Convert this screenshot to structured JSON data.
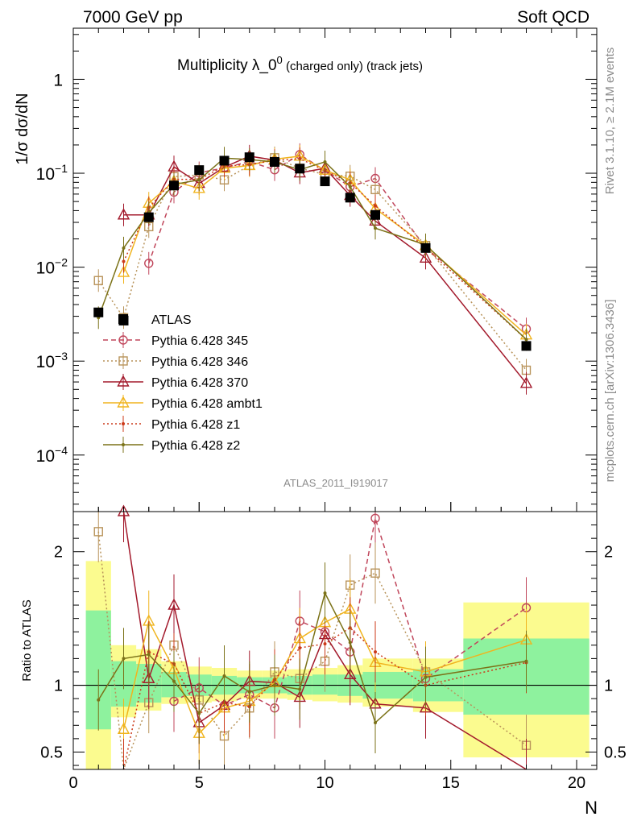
{
  "header": {
    "left": "7000 GeV pp",
    "right": "Soft QCD"
  },
  "title": {
    "main": "Multiplicity λ_0",
    "sup": "0",
    "sub": " (charged only) (track jets)"
  },
  "ylabel_top": "1/σ dσ/dN",
  "ylabel_bottom": "Ratio to ATLAS",
  "xlabel": "N",
  "side_text": {
    "rivet": "Rivet 3.1.10, ≥ 2.1M events",
    "site": "mcplots.cern.ch [arXiv:1306.3436]"
  },
  "analysis_id": "ATLAS_2011_I919017",
  "chart_data": [
    {
      "type": "scatter",
      "yscale": "log",
      "xlim": [
        0,
        20.8
      ],
      "ylim": [
        2.5e-05,
        3.5
      ],
      "x_ticks": [
        "0",
        "5",
        "10",
        "15",
        "20"
      ],
      "y_ticks": [
        {
          "base": "10",
          "exp": "−4",
          "value": 0.0001
        },
        {
          "base": "10",
          "exp": "−3",
          "value": 0.001
        },
        {
          "base": "10",
          "exp": "−2",
          "value": 0.01
        },
        {
          "base": "10",
          "exp": "−1",
          "value": 0.1
        },
        {
          "base": "1",
          "exp": "",
          "value": 1
        }
      ],
      "legend_position": "left, lower-middle",
      "series": [
        {
          "name": "ATLAS",
          "color": "#000000",
          "marker": "square-filled",
          "style": "data",
          "x": [
            1,
            2,
            3,
            4,
            5,
            6,
            7,
            8,
            9,
            10,
            11,
            12,
            14,
            18
          ],
          "y": [
            0.0033,
            0.0027,
            0.034,
            0.074,
            0.108,
            0.136,
            0.148,
            0.132,
            0.112,
            0.082,
            0.055,
            0.036,
            0.016,
            0.00145
          ]
        },
        {
          "name": "Pythia 6.428 345",
          "color": "#c0465b",
          "marker": "circle-open",
          "style": "dashed",
          "x": [
            3,
            4,
            5,
            6,
            7,
            8,
            9,
            10,
            11,
            12,
            14,
            18
          ],
          "y": [
            0.011,
            0.063,
            0.101,
            0.114,
            0.133,
            0.109,
            0.158,
            0.107,
            0.072,
            0.088,
            0.016,
            0.0022
          ]
        },
        {
          "name": "Pythia 6.428 346",
          "color": "#b8935a",
          "marker": "square-open",
          "style": "dotted",
          "x": [
            1,
            2,
            3,
            4,
            5,
            6,
            7,
            8,
            9,
            10,
            11,
            12,
            14,
            18
          ],
          "y": [
            0.0072,
            0.0029,
            0.027,
            0.092,
            0.096,
            0.085,
            0.121,
            0.146,
            0.113,
            0.097,
            0.093,
            0.067,
            0.017,
            0.0008
          ]
        },
        {
          "name": "Pythia 6.428 370",
          "color": "#a31a2c",
          "marker": "triangle-open",
          "style": "solid",
          "x": [
            2,
            3,
            4,
            5,
            6,
            7,
            8,
            9,
            10,
            11,
            12,
            14,
            18
          ],
          "y": [
            0.036,
            0.036,
            0.117,
            0.078,
            0.116,
            0.152,
            0.138,
            0.101,
            0.113,
            0.058,
            0.031,
            0.0125,
            0.00058
          ]
        },
        {
          "name": "Pythia 6.428 ambt1",
          "color": "#f0b41e",
          "marker": "triangle-open",
          "style": "solid",
          "x": [
            2,
            3,
            4,
            5,
            6,
            7,
            8,
            9,
            10,
            11,
            12,
            14,
            18
          ],
          "y": [
            0.0088,
            0.048,
            0.082,
            0.069,
            0.113,
            0.121,
            0.141,
            0.152,
            0.108,
            0.085,
            0.042,
            0.017,
            0.0019
          ]
        },
        {
          "name": "Pythia 6.428 z1",
          "color": "#cc3a1a",
          "marker": "dot",
          "style": "dotted",
          "x": [
            2,
            3,
            4,
            5,
            6,
            7,
            8,
            9,
            10,
            11,
            12,
            14,
            18
          ],
          "y": [
            0.0115,
            0.043,
            0.086,
            0.086,
            0.119,
            0.124,
            0.137,
            0.143,
            0.107,
            0.079,
            0.045,
            0.016,
            0.0017
          ]
        },
        {
          "name": "Pythia 6.428 z2",
          "color": "#7b7218",
          "marker": "dot",
          "style": "solid",
          "x": [
            1,
            2,
            3,
            4,
            5,
            6,
            7,
            8,
            9,
            10,
            11,
            12,
            14,
            18
          ],
          "y": [
            0.0029,
            0.016,
            0.038,
            0.076,
            0.085,
            0.145,
            0.14,
            0.132,
            0.109,
            0.132,
            0.072,
            0.026,
            0.0173,
            0.0017
          ]
        }
      ]
    },
    {
      "type": "scatter",
      "xlim": [
        0,
        20.8
      ],
      "ylim": [
        0.37,
        2.3
      ],
      "x_ticks": [
        "0",
        "5",
        "10",
        "15",
        "20"
      ],
      "y_ticks": [
        "0.5",
        "1",
        "2"
      ],
      "ylabel": "Ratio to ATLAS",
      "xlabel": "N",
      "bands": [
        {
          "x": [
            0.5,
            1.5
          ],
          "stat_syst": [
            0.35,
            1.93
          ],
          "stat": [
            0.67,
            1.56
          ]
        },
        {
          "x": [
            1.5,
            2.5
          ],
          "stat_syst": [
            0.76,
            1.3
          ],
          "stat": [
            0.84,
            1.18
          ]
        },
        {
          "x": [
            2.5,
            3.5
          ],
          "stat_syst": [
            0.81,
            1.27
          ],
          "stat": [
            0.87,
            1.16
          ]
        },
        {
          "x": [
            3.5,
            4.5
          ],
          "stat_syst": [
            0.86,
            1.18
          ],
          "stat": [
            0.91,
            1.1
          ]
        },
        {
          "x": [
            4.5,
            5.5
          ],
          "stat_syst": [
            0.87,
            1.14
          ],
          "stat": [
            0.92,
            1.08
          ]
        },
        {
          "x": [
            5.5,
            6.5
          ],
          "stat_syst": [
            0.88,
            1.13
          ],
          "stat": [
            0.93,
            1.07
          ]
        },
        {
          "x": [
            6.5,
            7.5
          ],
          "stat_syst": [
            0.9,
            1.11
          ],
          "stat": [
            0.94,
            1.06
          ]
        },
        {
          "x": [
            7.5,
            8.5
          ],
          "stat_syst": [
            0.9,
            1.11
          ],
          "stat": [
            0.94,
            1.06
          ]
        },
        {
          "x": [
            8.5,
            9.5
          ],
          "stat_syst": [
            0.89,
            1.12
          ],
          "stat": [
            0.93,
            1.07
          ]
        },
        {
          "x": [
            9.5,
            10.5
          ],
          "stat_syst": [
            0.88,
            1.13
          ],
          "stat": [
            0.93,
            1.08
          ]
        },
        {
          "x": [
            10.5,
            11.5
          ],
          "stat_syst": [
            0.87,
            1.15
          ],
          "stat": [
            0.92,
            1.08
          ]
        },
        {
          "x": [
            11.5,
            13.5
          ],
          "stat_syst": [
            0.84,
            1.2
          ],
          "stat": [
            0.9,
            1.1
          ]
        },
        {
          "x": [
            13.5,
            15.5
          ],
          "stat_syst": [
            0.8,
            1.2
          ],
          "stat": [
            0.88,
            1.12
          ]
        },
        {
          "x": [
            15.5,
            20.5
          ],
          "stat_syst": [
            0.46,
            1.62
          ],
          "stat": [
            0.78,
            1.35
          ]
        }
      ],
      "series": [
        {
          "name": "Pythia 6.428 345",
          "color": "#c0465b",
          "marker": "circle-open",
          "style": "dashed",
          "x": [
            4,
            5,
            6,
            7,
            8,
            9,
            10,
            11,
            12,
            14,
            18
          ],
          "y": [
            0.88,
            0.98,
            0.85,
            0.93,
            0.83,
            1.48,
            1.4,
            1.25,
            2.25,
            1.05,
            1.58
          ]
        },
        {
          "name": "Pythia 6.428 346",
          "color": "#b8935a",
          "marker": "square-open",
          "style": "dotted",
          "x": [
            1,
            2,
            3,
            4,
            5,
            6,
            7,
            8,
            9,
            10,
            11,
            12,
            14,
            18
          ],
          "y": [
            2.15,
            0.3,
            0.87,
            1.3,
            0.89,
            0.62,
            0.83,
            1.1,
            1.05,
            1.18,
            1.75,
            1.84,
            1.1,
            0.55
          ]
        },
        {
          "name": "Pythia 6.428 370",
          "color": "#a31a2c",
          "marker": "triangle-open",
          "style": "solid",
          "x": [
            2,
            3,
            4,
            5,
            6,
            7,
            8,
            9,
            10,
            11,
            12,
            14,
            18
          ],
          "y": [
            2.3,
            1.05,
            1.6,
            0.72,
            0.85,
            1.03,
            1.02,
            0.91,
            1.38,
            1.08,
            0.86,
            0.83,
            0.36
          ]
        },
        {
          "name": "Pythia 6.428 ambt1",
          "color": "#f0b41e",
          "marker": "triangle-open",
          "style": "solid",
          "x": [
            2,
            3,
            4,
            5,
            6,
            7,
            8,
            9,
            10,
            11,
            12,
            14,
            18
          ],
          "y": [
            0.67,
            1.48,
            1.12,
            0.64,
            0.83,
            0.88,
            1.02,
            1.35,
            1.47,
            1.57,
            1.17,
            1.1,
            1.34
          ]
        },
        {
          "name": "Pythia 6.428 z1",
          "color": "#cc3a1a",
          "marker": "dot",
          "style": "dotted",
          "x": [
            2,
            3,
            4,
            5,
            6,
            7,
            8,
            9,
            10,
            11,
            12,
            14,
            18
          ],
          "y": [
            0.32,
            1.25,
            1.16,
            0.79,
            0.87,
            0.84,
            1.04,
            1.28,
            1.31,
            1.43,
            1.25,
            1.0,
            1.17
          ]
        },
        {
          "name": "Pythia 6.428 z2",
          "color": "#7b7218",
          "marker": "dot",
          "style": "solid",
          "x": [
            1,
            2,
            3,
            4,
            5,
            6,
            7,
            8,
            9,
            10,
            11,
            12,
            14,
            18
          ],
          "y": [
            0.89,
            1.2,
            1.23,
            1.03,
            0.79,
            1.07,
            0.95,
            1.0,
            0.97,
            1.69,
            1.32,
            0.72,
            1.06,
            1.18
          ]
        }
      ]
    }
  ]
}
